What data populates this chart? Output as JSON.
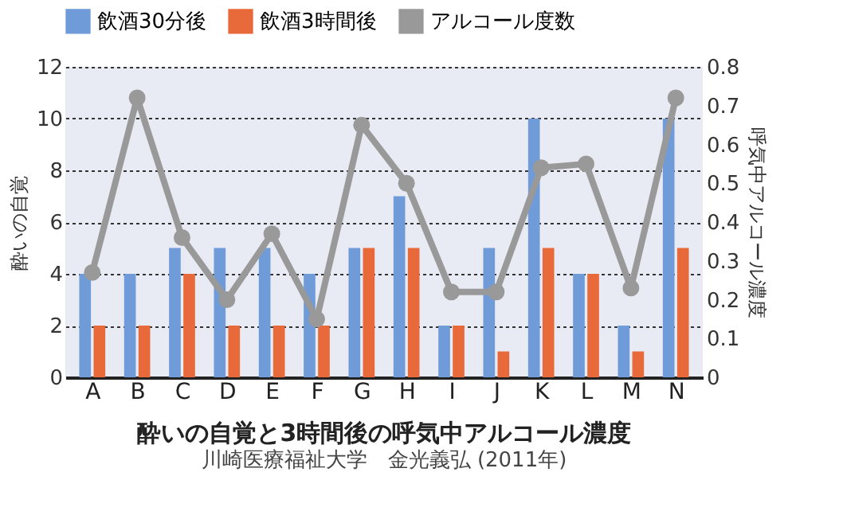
{
  "chart_data": {
    "type": "bar",
    "title": "酔いの自覚と3時間後の呼気中アルコール濃度",
    "annotations": [
      "川崎医療福祉大学　金光義弘 (2011年)"
    ],
    "categories": [
      "A",
      "B",
      "C",
      "D",
      "E",
      "F",
      "G",
      "H",
      "I",
      "J",
      "K",
      "L",
      "M",
      "N"
    ],
    "series": [
      {
        "name": "飲酒30分後",
        "color": "#6f9bd8",
        "values": [
          4,
          4,
          5,
          5,
          5,
          4,
          5,
          7,
          2,
          5,
          10,
          4,
          2,
          10
        ]
      },
      {
        "name": "飲酒3時間後",
        "color": "#e8693a",
        "values": [
          2,
          2,
          4,
          2,
          2,
          2,
          5,
          5,
          2,
          1,
          5,
          4,
          1,
          5
        ]
      },
      {
        "name": "アルコール度数",
        "color": "#999999",
        "type": "line",
        "axis": "y2",
        "marker": "circle",
        "values": [
          0.27,
          0.72,
          0.36,
          0.2,
          0.37,
          0.15,
          0.65,
          0.5,
          0.22,
          0.22,
          0.54,
          0.55,
          0.23,
          0.72
        ]
      }
    ],
    "ylabel": "酔いの自覚",
    "y2label": "呼気中アルコール濃度",
    "ylim": [
      0,
      12
    ],
    "yticks": [
      0,
      2,
      4,
      6,
      8,
      10,
      12
    ],
    "y2lim": [
      0,
      0.8
    ],
    "y2ticks": [
      0,
      0.1,
      0.2,
      0.3,
      0.4,
      0.5,
      0.6,
      0.7,
      0.8
    ],
    "grid": "y",
    "legend": "top"
  }
}
